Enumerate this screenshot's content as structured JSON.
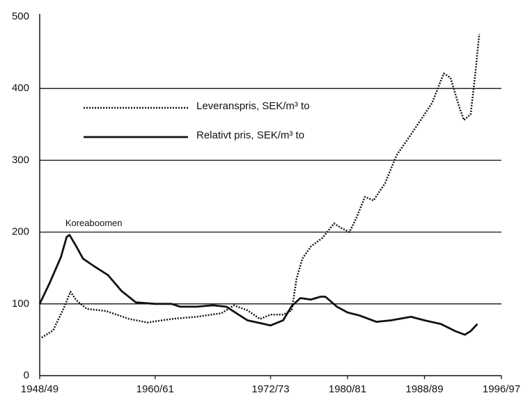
{
  "chart_data": {
    "type": "line",
    "annotations": [
      {
        "text": "Koreaboomen",
        "x": 1951.1,
        "y": 200
      }
    ],
    "xlim": [
      1948,
      1996
    ],
    "xticks": [
      {
        "value": 1948,
        "label": "1948/49"
      },
      {
        "value": 1960,
        "label": "1960/61"
      },
      {
        "value": 1972,
        "label": "1972/73"
      },
      {
        "value": 1980,
        "label": "1980/81"
      },
      {
        "value": 1988,
        "label": "1988/89"
      },
      {
        "value": 1996,
        "label": "1996/97"
      }
    ],
    "ylim": [
      0,
      500
    ],
    "yticks": [
      0,
      100,
      200,
      300,
      400,
      500
    ],
    "grid": true,
    "series": [
      {
        "name": "Leveranspris, SEK/m³ to",
        "color": "#111111",
        "style": "dotted",
        "x": [
          1948.2,
          1949.4,
          1950.6,
          1951.2,
          1951.8,
          1952.9,
          1954.9,
          1957.3,
          1959.2,
          1961.7,
          1964.3,
          1966.9,
          1968.2,
          1969.6,
          1970.9,
          1972,
          1973.3,
          1974.2,
          1974.7,
          1975.3,
          1976.2,
          1977.4,
          1978.6,
          1979.3,
          1980.2,
          1980.9,
          1981.8,
          1982.7,
          1983.9,
          1985.1,
          1986.6,
          1988,
          1988.8,
          1990,
          1990.7,
          1991.6,
          1992.1,
          1992.8,
          1993.3,
          1993.7
        ],
        "values": [
          53,
          63,
          97,
          117,
          105,
          93,
          90,
          79,
          74,
          79,
          82,
          87,
          98,
          91,
          79,
          85,
          85,
          91,
          135,
          163,
          180,
          192,
          212,
          206,
          200,
          219,
          249,
          244,
          268,
          307,
          336,
          364,
          380,
          421,
          415,
          375,
          356,
          364,
          423,
          476
        ]
      },
      {
        "name": "Relativt pris, SEK/m³ to",
        "color": "#111111",
        "style": "solid",
        "x": [
          1948,
          1949,
          1950.2,
          1950.8,
          1951.1,
          1951.8,
          1952.5,
          1953.7,
          1955.1,
          1956.5,
          1958,
          1960,
          1961.7,
          1962.6,
          1964.3,
          1966,
          1967.4,
          1969.6,
          1972,
          1973.3,
          1974.2,
          1975.1,
          1976.2,
          1977.2,
          1977.7,
          1978.9,
          1980,
          1981.2,
          1983,
          1984.5,
          1986.6,
          1988,
          1989.7,
          1991.2,
          1992.2,
          1992.8,
          1993.5
        ],
        "values": [
          100,
          128,
          165,
          193,
          196,
          180,
          163,
          152,
          140,
          118,
          102,
          100,
          100,
          96,
          96,
          98,
          96,
          77,
          70,
          77,
          97,
          108,
          106,
          110,
          110,
          96,
          88,
          84,
          75,
          77,
          82,
          77,
          72,
          62,
          57,
          62,
          72
        ]
      }
    ]
  }
}
